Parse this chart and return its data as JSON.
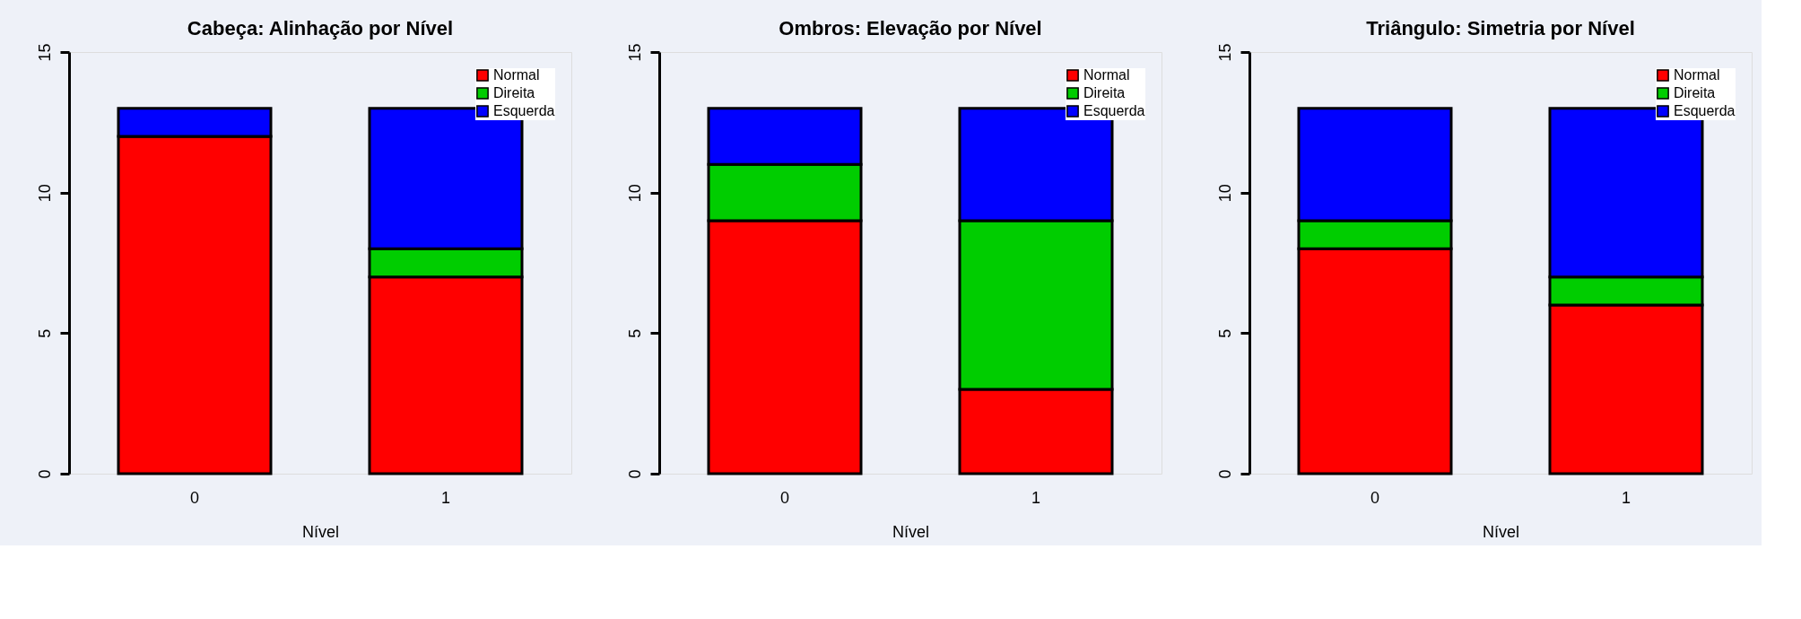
{
  "chart_data": [
    {
      "type": "bar",
      "title": "Cabeça: Alinhação por Nível",
      "xlabel": "Nível",
      "categories": [
        "0",
        "1"
      ],
      "stacked": true,
      "ylim": [
        0,
        15
      ],
      "yticks": [
        0,
        5,
        10,
        15
      ],
      "grid": false,
      "legend": "top right",
      "series": [
        {
          "name": "Normal",
          "color": "#ff0000",
          "values": [
            12,
            7
          ]
        },
        {
          "name": "Direita",
          "color": "#00cd00",
          "values": [
            0,
            1
          ]
        },
        {
          "name": "Esquerda",
          "color": "#0000ff",
          "values": [
            1,
            5
          ]
        }
      ]
    },
    {
      "type": "bar",
      "title": "Ombros: Elevação por Nível",
      "xlabel": "Nível",
      "categories": [
        "0",
        "1"
      ],
      "stacked": true,
      "ylim": [
        0,
        15
      ],
      "yticks": [
        0,
        5,
        10,
        15
      ],
      "grid": false,
      "legend": "top right",
      "series": [
        {
          "name": "Normal",
          "color": "#ff0000",
          "values": [
            9,
            3
          ]
        },
        {
          "name": "Direita",
          "color": "#00cd00",
          "values": [
            2,
            6
          ]
        },
        {
          "name": "Esquerda",
          "color": "#0000ff",
          "values": [
            2,
            4
          ]
        }
      ]
    },
    {
      "type": "bar",
      "title": "Triângulo: Simetria por Nível",
      "xlabel": "Nível",
      "categories": [
        "0",
        "1"
      ],
      "stacked": true,
      "ylim": [
        0,
        15
      ],
      "yticks": [
        0,
        5,
        10,
        15
      ],
      "grid": false,
      "legend": "top right",
      "series": [
        {
          "name": "Normal",
          "color": "#ff0000",
          "values": [
            8,
            6
          ]
        },
        {
          "name": "Direita",
          "color": "#00cd00",
          "values": [
            1,
            1
          ]
        },
        {
          "name": "Esquerda",
          "color": "#0000ff",
          "values": [
            4,
            6
          ]
        }
      ]
    }
  ]
}
